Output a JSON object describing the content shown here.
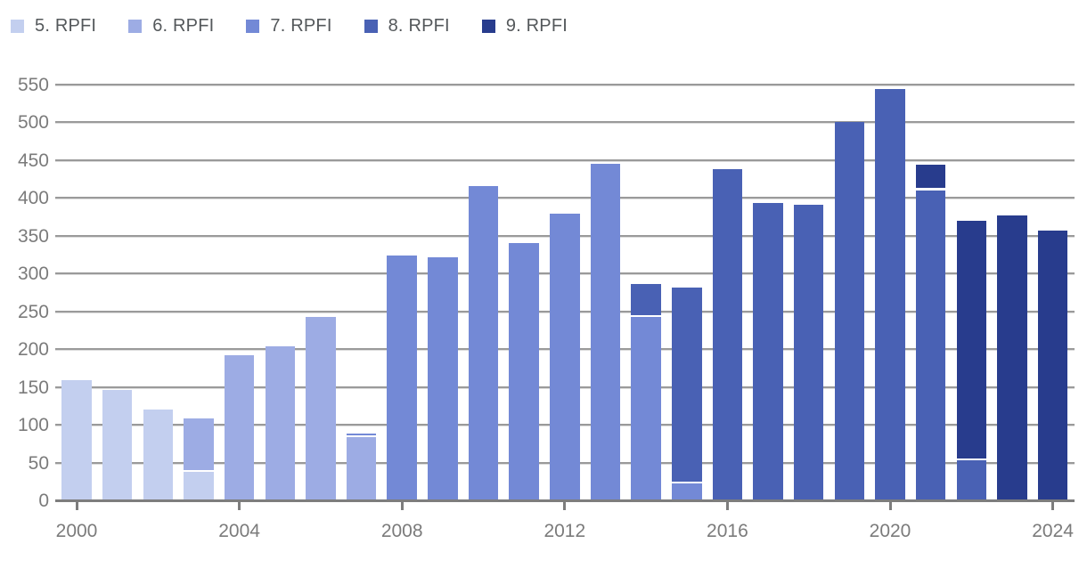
{
  "legend": {
    "items": [
      {
        "label": "5. RPFI",
        "color": "#c3cfef"
      },
      {
        "label": "6. RPFI",
        "color": "#9dace4"
      },
      {
        "label": "7. RPFI",
        "color": "#7389d6"
      },
      {
        "label": "8. RPFI",
        "color": "#4961b4"
      },
      {
        "label": "9. RPFI",
        "color": "#283c8d"
      }
    ]
  },
  "chart_data": {
    "type": "bar",
    "stacked": true,
    "title": "",
    "xlabel": "",
    "ylabel": "",
    "grid": true,
    "legend_position": "top-left",
    "ylim": [
      0,
      550
    ],
    "ytick_step": 50,
    "x": [
      2000,
      2001,
      2002,
      2003,
      2004,
      2005,
      2006,
      2007,
      2008,
      2009,
      2010,
      2011,
      2012,
      2013,
      2014,
      2015,
      2016,
      2017,
      2018,
      2019,
      2020,
      2021,
      2022,
      2023,
      2024
    ],
    "xtick_labels": [
      "2000",
      "2004",
      "2008",
      "2012",
      "2016",
      "2020",
      "2024"
    ],
    "xticks": [
      2000,
      2004,
      2008,
      2012,
      2016,
      2020,
      2024
    ],
    "series": [
      {
        "name": "5. RPFI",
        "color": "#c3cfef",
        "values": [
          159,
          146,
          120,
          38,
          0,
          0,
          0,
          0,
          0,
          0,
          0,
          0,
          0,
          0,
          0,
          0,
          0,
          0,
          0,
          0,
          0,
          0,
          0,
          0,
          0
        ]
      },
      {
        "name": "6. RPFI",
        "color": "#9dace4",
        "values": [
          0,
          0,
          0,
          70,
          192,
          204,
          242,
          83,
          0,
          0,
          0,
          0,
          0,
          0,
          0,
          0,
          0,
          0,
          0,
          0,
          0,
          0,
          0,
          0,
          0
        ]
      },
      {
        "name": "7. RPFI",
        "color": "#7389d6",
        "values": [
          0,
          0,
          0,
          0,
          0,
          0,
          0,
          5,
          323,
          321,
          415,
          340,
          379,
          445,
          242,
          22,
          0,
          0,
          0,
          0,
          0,
          0,
          0,
          0,
          0
        ]
      },
      {
        "name": "8. RPFI",
        "color": "#4961b4",
        "values": [
          0,
          0,
          0,
          0,
          0,
          0,
          0,
          0,
          0,
          0,
          0,
          0,
          0,
          0,
          44,
          259,
          438,
          393,
          391,
          500,
          543,
          410,
          53,
          0,
          0
        ]
      },
      {
        "name": "9. RPFI",
        "color": "#283c8d",
        "values": [
          0,
          0,
          0,
          0,
          0,
          0,
          0,
          0,
          0,
          0,
          0,
          0,
          0,
          0,
          0,
          0,
          0,
          0,
          0,
          0,
          0,
          33,
          317,
          376,
          356
        ]
      }
    ],
    "totals": [
      159,
      146,
      120,
      108,
      192,
      204,
      242,
      88,
      323,
      321,
      415,
      340,
      379,
      445,
      286,
      281,
      438,
      393,
      391,
      500,
      543,
      443,
      370,
      376,
      356
    ]
  }
}
